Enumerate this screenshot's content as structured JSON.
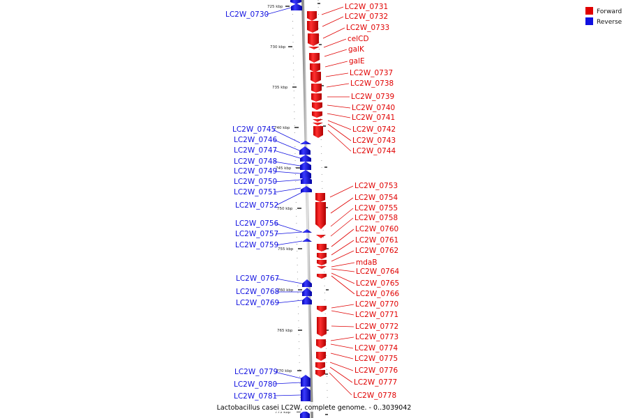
{
  "caption": "Lactobacillus casei LC2W, complete genome. - 0..3039042",
  "legend": [
    {
      "label": "Forward",
      "color": "#e00000"
    },
    {
      "label": "Reverse",
      "color": "#1010e0"
    }
  ],
  "ticks": [
    "725 kbp",
    "730 kbp",
    "735 kbp",
    "740 kbp",
    "745 kbp",
    "750 kbp",
    "755 kbp",
    "760 kbp",
    "765 kbp",
    "770 kbp",
    "775 kbp"
  ],
  "forward_genes": [
    "LC2W_0731",
    "LC2W_0732",
    "LC2W_0733",
    "celCD",
    "galK",
    "galE",
    "LC2W_0737",
    "LC2W_0738",
    "LC2W_0739",
    "LC2W_0740",
    "LC2W_0741",
    "LC2W_0742",
    "LC2W_0743",
    "LC2W_0744",
    "LC2W_0753",
    "LC2W_0754",
    "LC2W_0755",
    "LC2W_0758",
    "LC2W_0760",
    "LC2W_0761",
    "LC2W_0762",
    "mdaB",
    "LC2W_0764",
    "LC2W_0765",
    "LC2W_0766",
    "LC2W_0770",
    "LC2W_0771",
    "LC2W_0772",
    "LC2W_0773",
    "LC2W_0774",
    "LC2W_0775",
    "LC2W_0776",
    "LC2W_0777",
    "LC2W_0778"
  ],
  "reverse_genes": [
    "LC2W_0730",
    "LC2W_0745",
    "LC2W_0746",
    "LC2W_0747",
    "LC2W_0748",
    "LC2W_0749",
    "LC2W_0750",
    "LC2W_0751",
    "LC2W_0752",
    "LC2W_0756",
    "LC2W_0757",
    "LC2W_0759",
    "LC2W_0767",
    "LC2W_0768",
    "LC2W_0769",
    "LC2W_0779",
    "LC2W_0780",
    "LC2W_0781"
  ]
}
